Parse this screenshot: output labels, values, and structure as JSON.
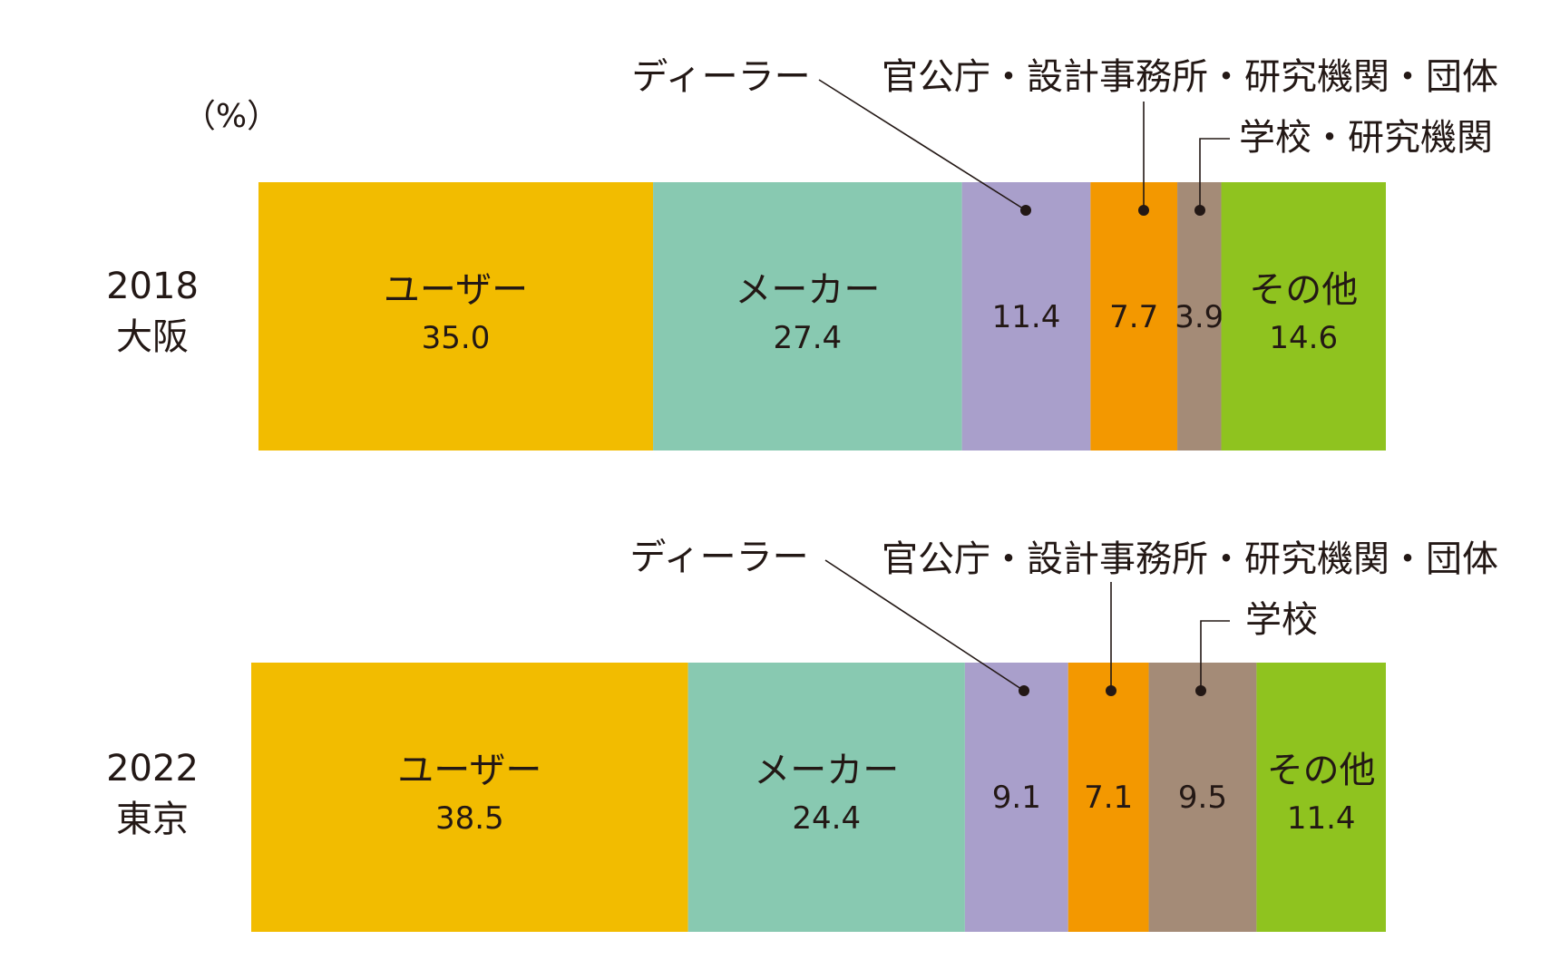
{
  "chart_data": {
    "type": "bar",
    "stacked": true,
    "orientation": "horizontal",
    "unit_label": "（%）",
    "colors": {
      "user": "#F2BC00",
      "maker": "#88C9B1",
      "dealer": "#A99FCB",
      "government": "#F39800",
      "school": "#A48B77",
      "other": "#8FC31F",
      "text": "#231815",
      "leader": "#231815"
    },
    "rows": [
      {
        "year": "2018",
        "city": "大阪",
        "segments": [
          {
            "key": "user",
            "label": "ユーザー",
            "value": 35.0,
            "value_text": "35.0"
          },
          {
            "key": "maker",
            "label": "メーカー",
            "value": 27.4,
            "value_text": "27.4"
          },
          {
            "key": "dealer",
            "label": "ディーラー",
            "value": 11.4,
            "value_text": "11.4"
          },
          {
            "key": "government",
            "label": "官公庁・設計事務所・研究機関・団体",
            "value": 7.7,
            "value_text": "7.7"
          },
          {
            "key": "school",
            "label": "学校・研究機関",
            "value": 3.9,
            "value_text": "3.9"
          },
          {
            "key": "other",
            "label": "その他",
            "value": 14.6,
            "value_text": "14.6"
          }
        ]
      },
      {
        "year": "2022",
        "city": "東京",
        "segments": [
          {
            "key": "user",
            "label": "ユーザー",
            "value": 38.5,
            "value_text": "38.5"
          },
          {
            "key": "maker",
            "label": "メーカー",
            "value": 24.4,
            "value_text": "24.4"
          },
          {
            "key": "dealer",
            "label": "ディーラー",
            "value": 9.1,
            "value_text": "9.1"
          },
          {
            "key": "government",
            "label": "官公庁・設計事務所・研究機関・団体",
            "value": 7.1,
            "value_text": "7.1"
          },
          {
            "key": "school",
            "label": "学校",
            "value": 9.5,
            "value_text": "9.5"
          },
          {
            "key": "other",
            "label": "その他",
            "value": 11.4,
            "value_text": "11.4"
          }
        ]
      }
    ]
  }
}
